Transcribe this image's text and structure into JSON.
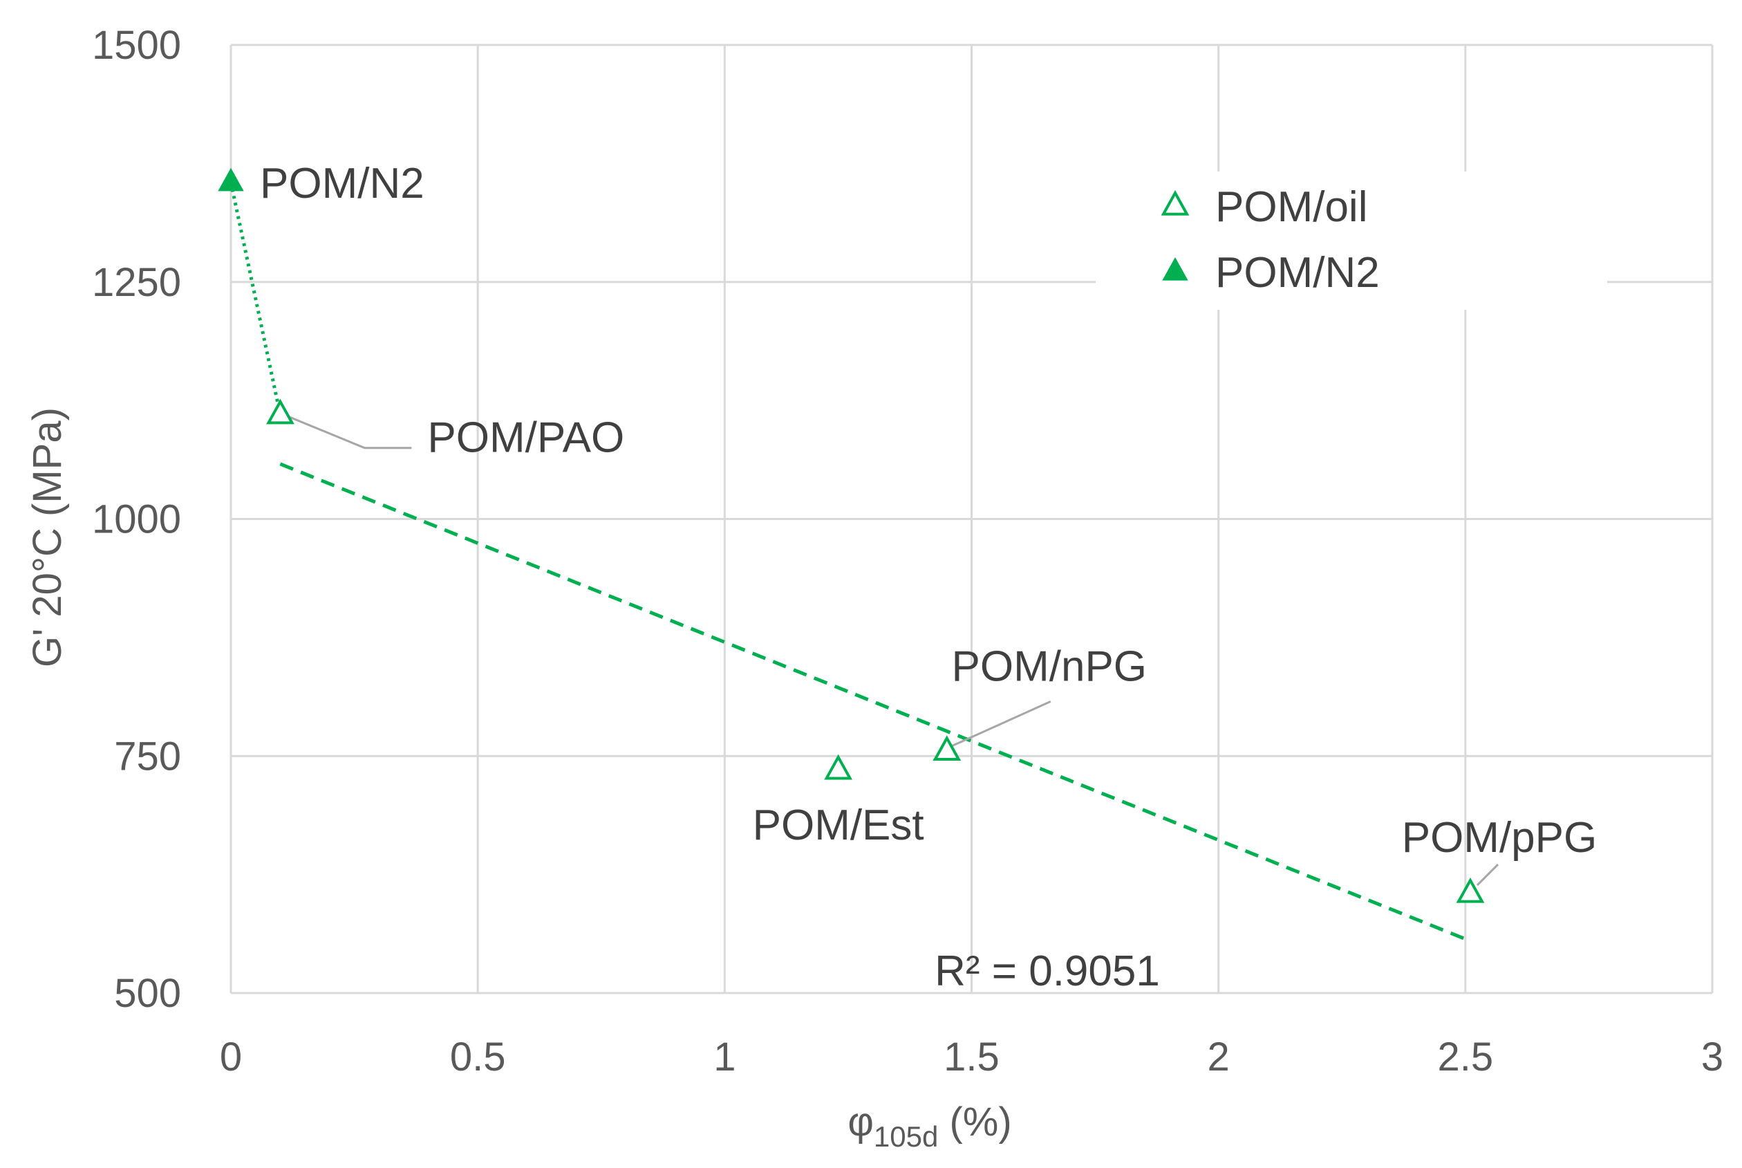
{
  "chart_data": {
    "type": "scatter",
    "title": "",
    "xlabel_main": "φ",
    "xlabel_sub": "105d",
    "xlabel_unit": " (%)",
    "ylabel": "G' 20°C (MPa)",
    "xlim": [
      0,
      3
    ],
    "ylim": [
      500,
      1500
    ],
    "x_ticks": [
      0,
      0.5,
      1,
      1.5,
      2,
      2.5,
      3
    ],
    "x_tick_labels": [
      "0",
      "0.5",
      "1",
      "1.5",
      "2",
      "2.5",
      "3"
    ],
    "y_ticks": [
      500,
      750,
      1000,
      1250,
      1500
    ],
    "y_tick_labels": [
      "500",
      "750",
      "1000",
      "1250",
      "1500"
    ],
    "grid": true,
    "legend_position": "top-right",
    "series": [
      {
        "name": "POM/oil",
        "marker": "open-triangle",
        "color": "#00b050",
        "points": [
          {
            "x": 0.1,
            "y": 1110,
            "label": "POM/PAO"
          },
          {
            "x": 1.23,
            "y": 735,
            "label": "POM/Est"
          },
          {
            "x": 1.45,
            "y": 755,
            "label": "POM/nPG"
          },
          {
            "x": 2.51,
            "y": 605,
            "label": "POM/pPG"
          }
        ]
      },
      {
        "name": "POM/N2",
        "marker": "filled-triangle",
        "color": "#00b050",
        "points": [
          {
            "x": 0,
            "y": 1355,
            "label": "POM/N2"
          }
        ]
      }
    ],
    "trendline": {
      "type": "linear",
      "style": "dashed",
      "color": "#00b050",
      "x_start": 0.1,
      "y_start": 1058,
      "x_end": 2.5,
      "y_end": 557,
      "r2_label": "R² = 0.9051"
    },
    "connector": {
      "style": "dotted",
      "color": "#00b050",
      "from": {
        "x": 0,
        "y": 1355
      },
      "to": {
        "x": 0.1,
        "y": 1110
      }
    }
  }
}
